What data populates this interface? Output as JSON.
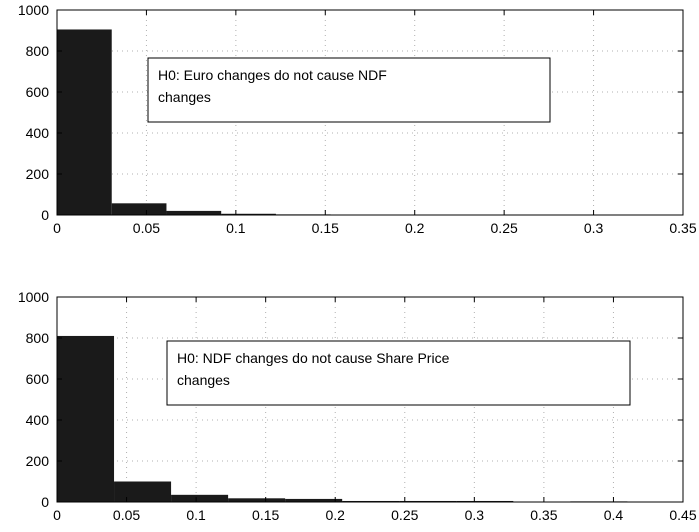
{
  "chart_data": [
    {
      "type": "bar",
      "title": "",
      "xlabel": "",
      "ylabel": "",
      "xlim": [
        0,
        0.35
      ],
      "ylim": [
        0,
        1000
      ],
      "x_ticks": [
        "0",
        "0.05",
        "0.1",
        "0.15",
        "0.2",
        "0.25",
        "0.3",
        "0.35"
      ],
      "y_ticks": [
        "0",
        "200",
        "400",
        "600",
        "800",
        "1000"
      ],
      "grid": true,
      "bar_color": "#1a1a1a",
      "bins": [
        {
          "x0": 0.0,
          "x1": 0.0306,
          "count": 905
        },
        {
          "x0": 0.0306,
          "x1": 0.0612,
          "count": 57
        },
        {
          "x0": 0.0612,
          "x1": 0.0918,
          "count": 20
        },
        {
          "x0": 0.0918,
          "x1": 0.1224,
          "count": 6
        },
        {
          "x0": 0.1224,
          "x1": 0.153,
          "count": 3
        },
        {
          "x0": 0.153,
          "x1": 0.1836,
          "count": 2
        },
        {
          "x0": 0.1836,
          "x1": 0.2142,
          "count": 2
        },
        {
          "x0": 0.2142,
          "x1": 0.2448,
          "count": 1
        },
        {
          "x0": 0.2448,
          "x1": 0.2754,
          "count": 1
        },
        {
          "x0": 0.2754,
          "x1": 0.306,
          "count": 1
        }
      ],
      "annotation": {
        "lines": [
          "H0: Euro changes do not cause NDF",
          "changes"
        ]
      }
    },
    {
      "type": "bar",
      "title": "",
      "xlabel": "",
      "ylabel": "",
      "xlim": [
        0,
        0.45
      ],
      "ylim": [
        0,
        1000
      ],
      "x_ticks": [
        "0",
        "0.05",
        "0.1",
        "0.15",
        "0.2",
        "0.25",
        "0.3",
        "0.35",
        "0.4",
        "0.45"
      ],
      "y_ticks": [
        "0",
        "200",
        "400",
        "600",
        "800",
        "1000"
      ],
      "grid": true,
      "bar_color": "#1a1a1a",
      "bins": [
        {
          "x0": 0.0,
          "x1": 0.041,
          "count": 810
        },
        {
          "x0": 0.041,
          "x1": 0.082,
          "count": 100
        },
        {
          "x0": 0.082,
          "x1": 0.123,
          "count": 35
        },
        {
          "x0": 0.123,
          "x1": 0.164,
          "count": 18
        },
        {
          "x0": 0.164,
          "x1": 0.205,
          "count": 15
        },
        {
          "x0": 0.205,
          "x1": 0.246,
          "count": 5
        },
        {
          "x0": 0.246,
          "x1": 0.287,
          "count": 5
        },
        {
          "x0": 0.287,
          "x1": 0.328,
          "count": 5
        },
        {
          "x0": 0.328,
          "x1": 0.369,
          "count": 1
        },
        {
          "x0": 0.369,
          "x1": 0.41,
          "count": 3
        }
      ],
      "annotation": {
        "lines": [
          "H0: NDF changes do not cause Share Price",
          "changes"
        ]
      }
    }
  ]
}
